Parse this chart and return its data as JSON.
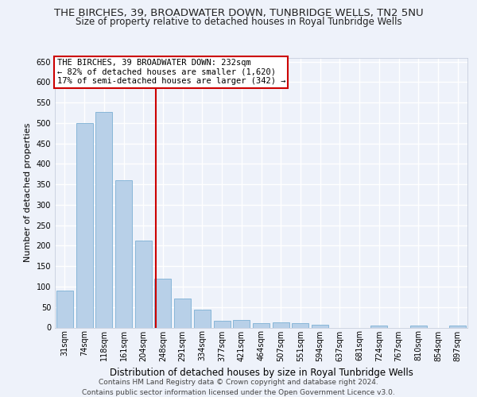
{
  "title": "THE BIRCHES, 39, BROADWATER DOWN, TUNBRIDGE WELLS, TN2 5NU",
  "subtitle": "Size of property relative to detached houses in Royal Tunbridge Wells",
  "xlabel": "Distribution of detached houses by size in Royal Tunbridge Wells",
  "ylabel": "Number of detached properties",
  "footer": "Contains HM Land Registry data © Crown copyright and database right 2024.\nContains public sector information licensed under the Open Government Licence v3.0.",
  "categories": [
    "31sqm",
    "74sqm",
    "118sqm",
    "161sqm",
    "204sqm",
    "248sqm",
    "291sqm",
    "334sqm",
    "377sqm",
    "421sqm",
    "464sqm",
    "507sqm",
    "551sqm",
    "594sqm",
    "637sqm",
    "681sqm",
    "724sqm",
    "767sqm",
    "810sqm",
    "854sqm",
    "897sqm"
  ],
  "values": [
    90,
    500,
    527,
    360,
    212,
    120,
    70,
    43,
    16,
    19,
    10,
    12,
    10,
    7,
    0,
    0,
    5,
    0,
    4,
    0,
    4
  ],
  "bar_color": "#b8d0e8",
  "bar_edge_color": "#7bafd4",
  "vline_bin": 4.62,
  "annotation_text": "THE BIRCHES, 39 BROADWATER DOWN: 232sqm\n← 82% of detached houses are smaller (1,620)\n17% of semi-detached houses are larger (342) →",
  "annotation_box_color": "#ffffff",
  "annotation_box_edge": "#cc0000",
  "vline_color": "#cc0000",
  "ylim": [
    0,
    660
  ],
  "yticks": [
    0,
    50,
    100,
    150,
    200,
    250,
    300,
    350,
    400,
    450,
    500,
    550,
    600,
    650
  ],
  "background_color": "#eef2fa",
  "grid_color": "#ffffff",
  "title_fontsize": 9.5,
  "subtitle_fontsize": 8.5,
  "xlabel_fontsize": 8.5,
  "ylabel_fontsize": 8.0,
  "tick_fontsize": 7.0,
  "annotation_fontsize": 7.5,
  "footer_fontsize": 6.5
}
